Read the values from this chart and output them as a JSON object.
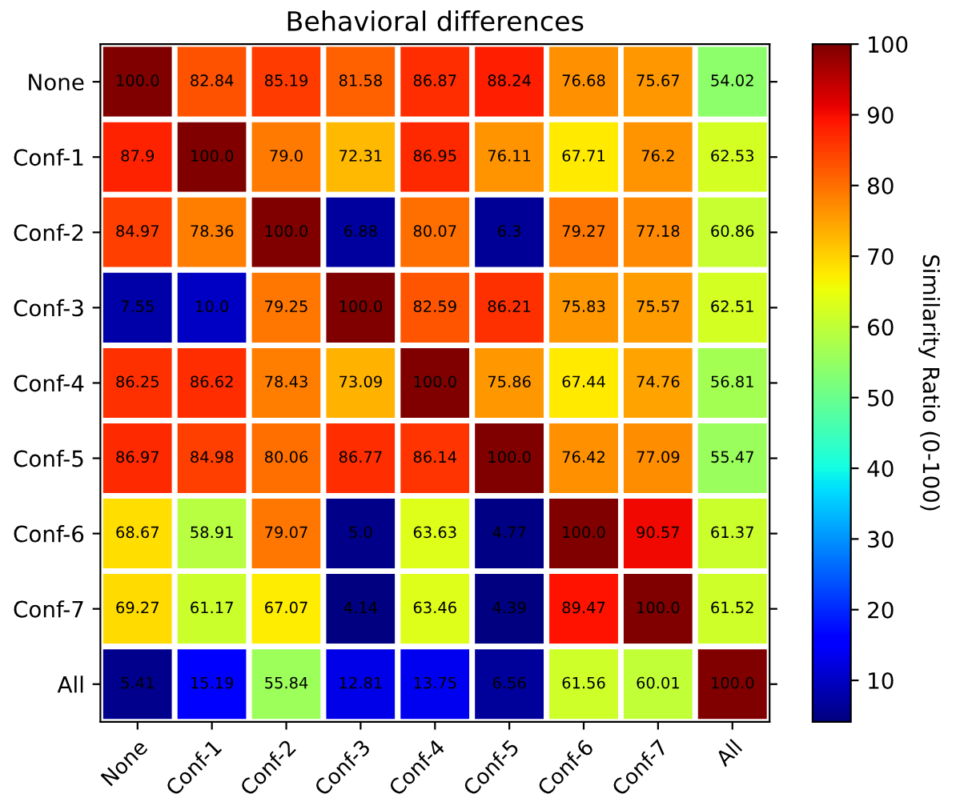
{
  "chart_data": {
    "type": "heatmap",
    "title": "Behavioral differences",
    "clabel": "Similarity Ratio (0-100)",
    "categories": [
      "None",
      "Conf-1",
      "Conf-2",
      "Conf-3",
      "Conf-4",
      "Conf-5",
      "Conf-6",
      "Conf-7",
      "All"
    ],
    "y_categories": [
      "None",
      "Conf-1",
      "Conf-2",
      "Conf-3",
      "Conf-4",
      "Conf-5",
      "Conf-6",
      "Conf-7",
      "All"
    ],
    "cells": [
      [
        100.0,
        82.84,
        85.19,
        81.58,
        86.87,
        88.24,
        76.68,
        75.67,
        54.02
      ],
      [
        87.9,
        100.0,
        79.0,
        72.31,
        86.95,
        76.11,
        67.71,
        76.2,
        62.53
      ],
      [
        84.97,
        78.36,
        100.0,
        6.88,
        80.07,
        6.3,
        79.27,
        77.18,
        60.86
      ],
      [
        7.55,
        10.0,
        79.25,
        100.0,
        82.59,
        86.21,
        75.83,
        75.57,
        62.51
      ],
      [
        86.25,
        86.62,
        78.43,
        73.09,
        100.0,
        75.86,
        67.44,
        74.76,
        56.81
      ],
      [
        86.97,
        84.98,
        80.06,
        86.77,
        86.14,
        100.0,
        76.42,
        77.09,
        55.47
      ],
      [
        68.67,
        58.91,
        79.07,
        5.0,
        63.63,
        4.77,
        100.0,
        90.57,
        61.37
      ],
      [
        69.27,
        61.17,
        67.07,
        4.14,
        63.46,
        4.39,
        89.47,
        100.0,
        61.52
      ],
      [
        5.41,
        15.19,
        55.84,
        12.81,
        13.75,
        6.56,
        61.56,
        60.01,
        100.0
      ]
    ],
    "cell_labels": [
      [
        "100.0",
        "82.84",
        "85.19",
        "81.58",
        "86.87",
        "88.24",
        "76.68",
        "75.67",
        "54.02"
      ],
      [
        "87.9",
        "100.0",
        "79.0",
        "72.31",
        "86.95",
        "76.11",
        "67.71",
        "76.2",
        "62.53"
      ],
      [
        "84.97",
        "78.36",
        "100.0",
        "6.88",
        "80.07",
        "6.3",
        "79.27",
        "77.18",
        "60.86"
      ],
      [
        "7.55",
        "10.0",
        "79.25",
        "100.0",
        "82.59",
        "86.21",
        "75.83",
        "75.57",
        "62.51"
      ],
      [
        "86.25",
        "86.62",
        "78.43",
        "73.09",
        "100.0",
        "75.86",
        "67.44",
        "74.76",
        "56.81"
      ],
      [
        "86.97",
        "84.98",
        "80.06",
        "86.77",
        "86.14",
        "100.0",
        "76.42",
        "77.09",
        "55.47"
      ],
      [
        "68.67",
        "58.91",
        "79.07",
        "5.0",
        "63.63",
        "4.77",
        "100.0",
        "90.57",
        "61.37"
      ],
      [
        "69.27",
        "61.17",
        "67.07",
        "4.14",
        "63.46",
        "4.39",
        "89.47",
        "100.0",
        "61.52"
      ],
      [
        "5.41",
        "15.19",
        "55.84",
        "12.81",
        "13.75",
        "6.56",
        "61.56",
        "60.01",
        "100.0"
      ]
    ],
    "clim": [
      4.14,
      100
    ],
    "cticks": [
      10,
      20,
      30,
      40,
      50,
      60,
      70,
      80,
      90,
      100
    ]
  }
}
